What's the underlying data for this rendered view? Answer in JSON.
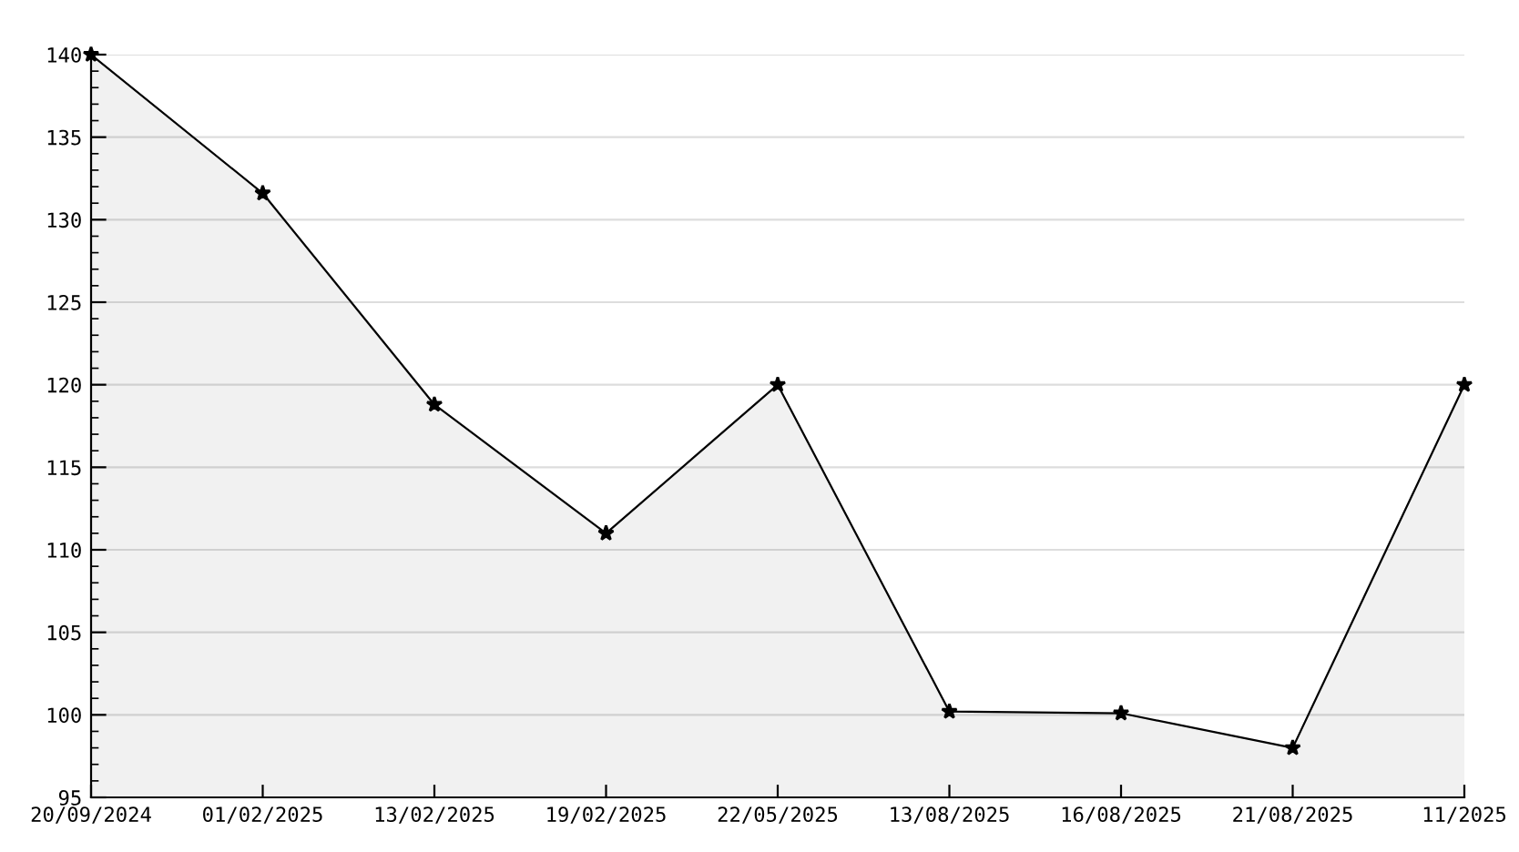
{
  "chart_data": {
    "type": "area",
    "categories": [
      "20/09/2024",
      "01/02/2025",
      "13/02/2025",
      "19/02/2025",
      "22/05/2025",
      "13/08/2025",
      "16/08/2025",
      "21/08/2025",
      "11/2025"
    ],
    "series": [
      {
        "color": "#000000",
        "values": [
          140,
          131.6,
          118.8,
          111.0,
          120.0,
          100.2,
          100.1,
          98.0,
          120.0
        ]
      }
    ],
    "ylim": [
      95,
      140
    ],
    "yticks": [
      95,
      100,
      105,
      110,
      115,
      120,
      125,
      130,
      135,
      140
    ],
    "grid": "y",
    "marker": "star",
    "line_style": "solid"
  }
}
